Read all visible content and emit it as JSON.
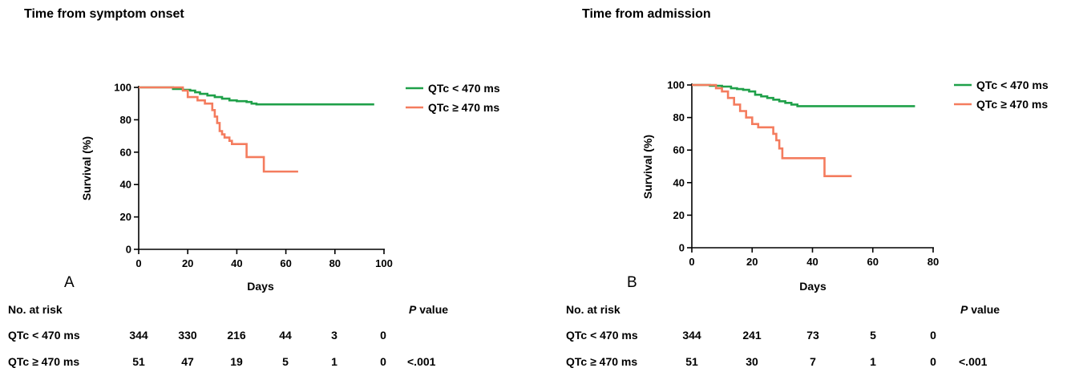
{
  "chart_data": [
    {
      "type": "line",
      "panel_letter": "A",
      "title": "Time from symptom onset",
      "xlabel": "Days",
      "ylabel": "Survival (%)",
      "xlim": [
        0,
        100
      ],
      "ylim": [
        0,
        100
      ],
      "xticks": [
        0,
        20,
        40,
        60,
        80,
        100
      ],
      "yticks": [
        0,
        20,
        40,
        60,
        80,
        100
      ],
      "grid": false,
      "legend_position": "top-right",
      "colors": {
        "green": "#1fa049",
        "orange": "#f47c5e"
      },
      "series": [
        {
          "name": "QTc < 470 ms",
          "color": "#1fa049",
          "x": [
            0,
            14,
            18,
            21,
            23,
            25,
            28,
            31,
            34,
            37,
            40,
            44,
            46,
            48,
            96
          ],
          "y": [
            100,
            99,
            98.5,
            98,
            97,
            96,
            95,
            94,
            93,
            92,
            91.5,
            91,
            90,
            89.5,
            89.5
          ]
        },
        {
          "name": "QTc ≥ 470 ms",
          "color": "#f47c5e",
          "x": [
            0,
            18,
            20,
            24,
            27,
            30,
            31,
            32,
            33,
            34,
            35,
            37,
            38,
            40,
            42,
            44,
            50,
            51,
            65
          ],
          "y": [
            100,
            98,
            94,
            92,
            90,
            86,
            82,
            78,
            73,
            71,
            69,
            67,
            65,
            65,
            65,
            57,
            57,
            48,
            48
          ]
        }
      ]
    },
    {
      "type": "line",
      "panel_letter": "B",
      "title": "Time from admission",
      "xlabel": "Days",
      "ylabel": "Survival (%)",
      "xlim": [
        0,
        80
      ],
      "ylim": [
        0,
        100
      ],
      "xticks": [
        0,
        20,
        40,
        60,
        80
      ],
      "yticks": [
        0,
        20,
        40,
        60,
        80,
        100
      ],
      "grid": false,
      "legend_position": "top-right",
      "colors": {
        "green": "#1fa049",
        "orange": "#f47c5e"
      },
      "series": [
        {
          "name": "QTc < 470 ms",
          "color": "#1fa049",
          "x": [
            0,
            6,
            10,
            13,
            15,
            17,
            19,
            21,
            23,
            25,
            27,
            29,
            31,
            33,
            35,
            74
          ],
          "y": [
            100,
            99.5,
            99,
            98,
            97.5,
            97,
            96,
            94,
            93,
            92,
            91,
            90,
            89,
            88,
            87,
            87
          ]
        },
        {
          "name": "QTc ≥ 470 ms",
          "color": "#f47c5e",
          "x": [
            0,
            8,
            10,
            12,
            14,
            16,
            18,
            20,
            22,
            26,
            27,
            28,
            29,
            30,
            31,
            44,
            53
          ],
          "y": [
            100,
            98,
            96,
            92,
            88,
            84,
            80,
            76,
            74,
            74,
            70,
            66,
            61,
            55,
            55,
            44,
            44
          ]
        }
      ]
    }
  ],
  "risk_tables": [
    {
      "heading": "No. at risk",
      "pvalue_label_italic": "P",
      "pvalue_label_rest": " value",
      "rows": [
        {
          "label": "QTc < 470 ms",
          "values": [
            "344",
            "330",
            "216",
            "44",
            "3",
            "0"
          ],
          "pvalue": ""
        },
        {
          "label": "QTc ≥ 470 ms",
          "values": [
            "51",
            "47",
            "19",
            "5",
            "1",
            "0"
          ],
          "pvalue": "<.001"
        }
      ]
    },
    {
      "heading": "No. at risk",
      "pvalue_label_italic": "P",
      "pvalue_label_rest": " value",
      "rows": [
        {
          "label": "QTc < 470 ms",
          "values": [
            "344",
            "241",
            "73",
            "5",
            "0"
          ],
          "pvalue": ""
        },
        {
          "label": "QTc ≥ 470 ms",
          "values": [
            "51",
            "30",
            "7",
            "1",
            "0"
          ],
          "pvalue": "<.001"
        }
      ]
    }
  ]
}
